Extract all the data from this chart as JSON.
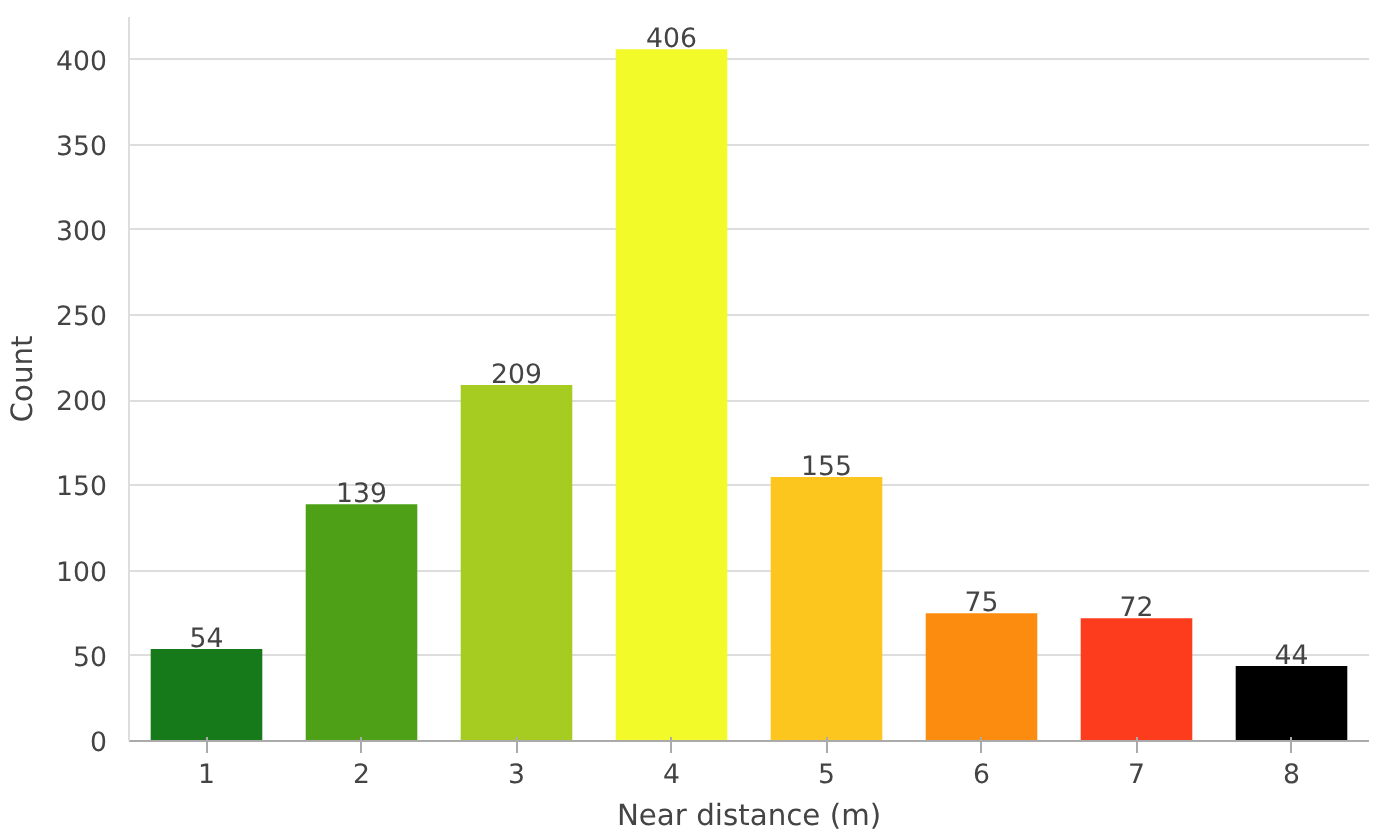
{
  "chart_data": {
    "type": "bar",
    "xlabel": "Near distance (m)",
    "ylabel": "Count",
    "categories": [
      "1",
      "2",
      "3",
      "4",
      "5",
      "6",
      "7",
      "8"
    ],
    "values": [
      54,
      139,
      209,
      406,
      155,
      75,
      72,
      44
    ],
    "colors": [
      "#167a1a",
      "#4ea116",
      "#a6cc22",
      "#f2fa2a",
      "#fcc61f",
      "#fc8c10",
      "#fc3c1c",
      "#000000"
    ],
    "ylim": [
      0,
      425
    ],
    "yticks": [
      0,
      50,
      100,
      150,
      200,
      250,
      300,
      350,
      400
    ],
    "grid": "y",
    "data_labels": true
  }
}
